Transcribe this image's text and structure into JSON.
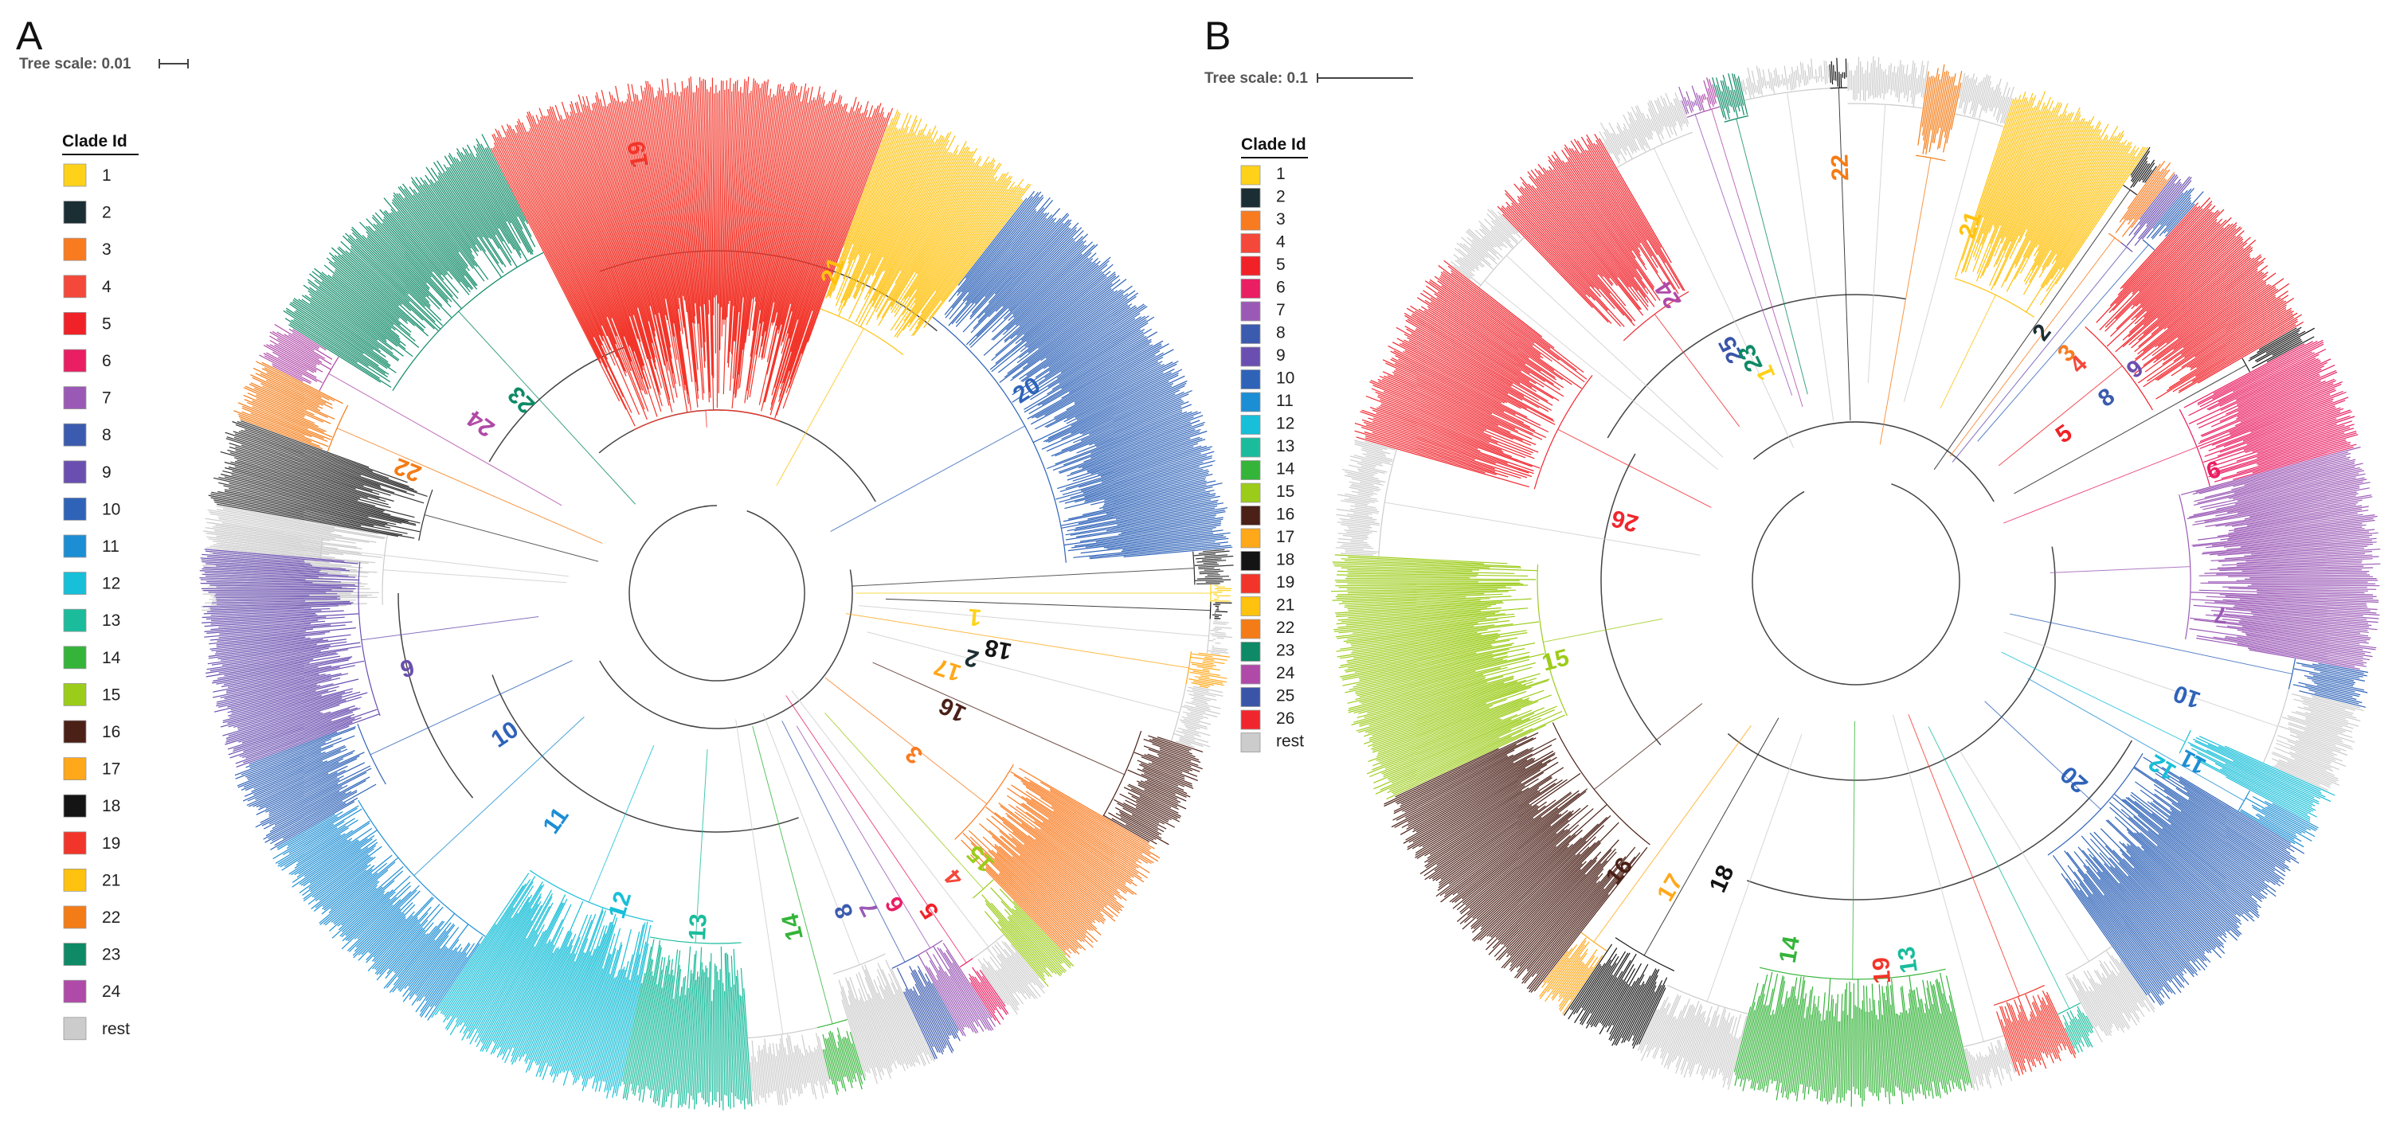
{
  "colors": {
    "1": "#FFD21A",
    "2": "#1B2E33",
    "3": "#F97B20",
    "4": "#F4483A",
    "5": "#F12128",
    "6": "#E91E63",
    "7": "#9B59B6",
    "8": "#3B5BAE",
    "9": "#6A4FB0",
    "10": "#2E63B8",
    "11": "#1C8ED4",
    "12": "#17BFD8",
    "13": "#1ABC9C",
    "14": "#35B43A",
    "15": "#9CCC1A",
    "16": "#4A2017",
    "17": "#FFA81A",
    "18": "#141414",
    "19": "#F2352A",
    "21": "#FFC20E",
    "22": "#F47C16",
    "23": "#0E8A66",
    "24": "#B04AA8",
    "25": "#3A55A8",
    "26": "#F0262E",
    "rest": "#CCCCCC",
    "line": "#333333"
  },
  "panels": [
    {
      "letter": "A",
      "scale_text": "Tree scale: 0.01",
      "legend": {
        "title": "Clade Id",
        "items": [
          "1",
          "2",
          "3",
          "4",
          "5",
          "6",
          "7",
          "8",
          "9",
          "10",
          "11",
          "12",
          "13",
          "14",
          "15",
          "16",
          "17",
          "18",
          "19",
          "21",
          "22",
          "23",
          "24",
          "rest"
        ]
      },
      "clades": [
        {
          "id": "19",
          "label": "19"
        },
        {
          "id": "21",
          "label": "21"
        },
        {
          "id": "20",
          "label": "20",
          "color_key": "10"
        },
        {
          "id": "1",
          "label": "1"
        },
        {
          "id": "2",
          "label": "2"
        },
        {
          "id": "17",
          "label": "17"
        },
        {
          "id": "18",
          "label": "18"
        },
        {
          "id": "16",
          "label": "16"
        },
        {
          "id": "3",
          "label": "3"
        },
        {
          "id": "15",
          "label": "15"
        },
        {
          "id": "4",
          "label": "4"
        },
        {
          "id": "5",
          "label": "5"
        },
        {
          "id": "6",
          "label": "6"
        },
        {
          "id": "7",
          "label": "7"
        },
        {
          "id": "8",
          "label": "8"
        },
        {
          "id": "14",
          "label": "14"
        },
        {
          "id": "13",
          "label": "13"
        },
        {
          "id": "12",
          "label": "12"
        },
        {
          "id": "11",
          "label": "11"
        },
        {
          "id": "10",
          "label": "10"
        },
        {
          "id": "9",
          "label": "9"
        },
        {
          "id": "22",
          "label": "22"
        },
        {
          "id": "24",
          "label": "24"
        },
        {
          "id": "23",
          "label": "23"
        }
      ]
    },
    {
      "letter": "B",
      "scale_text": "Tree scale: 0.1",
      "legend": {
        "title": "Clade Id",
        "items": [
          "1",
          "2",
          "3",
          "4",
          "5",
          "6",
          "7",
          "8",
          "9",
          "10",
          "11",
          "12",
          "13",
          "14",
          "15",
          "16",
          "17",
          "18",
          "19",
          "21",
          "22",
          "23",
          "24",
          "25",
          "26",
          "rest"
        ]
      },
      "clades": [
        {
          "id": "22",
          "label": "22"
        },
        {
          "id": "21",
          "label": "21"
        },
        {
          "id": "2",
          "label": "2"
        },
        {
          "id": "3",
          "label": "3"
        },
        {
          "id": "4",
          "label": "4"
        },
        {
          "id": "9",
          "label": "9"
        },
        {
          "id": "8",
          "label": "8"
        },
        {
          "id": "5",
          "label": "5"
        },
        {
          "id": "6",
          "label": "6"
        },
        {
          "id": "7",
          "label": "7"
        },
        {
          "id": "10",
          "label": "10"
        },
        {
          "id": "11",
          "label": "11"
        },
        {
          "id": "12",
          "label": "12"
        },
        {
          "id": "20",
          "label": "20",
          "color_key": "10"
        },
        {
          "id": "13",
          "label": "13"
        },
        {
          "id": "19",
          "label": "19"
        },
        {
          "id": "14",
          "label": "14"
        },
        {
          "id": "18",
          "label": "18"
        },
        {
          "id": "17",
          "label": "17"
        },
        {
          "id": "16",
          "label": "16"
        },
        {
          "id": "15",
          "label": "15"
        },
        {
          "id": "26",
          "label": "26"
        },
        {
          "id": "25",
          "label": "25"
        },
        {
          "id": "23",
          "label": "23"
        },
        {
          "id": "1",
          "label": "1"
        },
        {
          "id": "24",
          "label": "24"
        }
      ]
    }
  ]
}
